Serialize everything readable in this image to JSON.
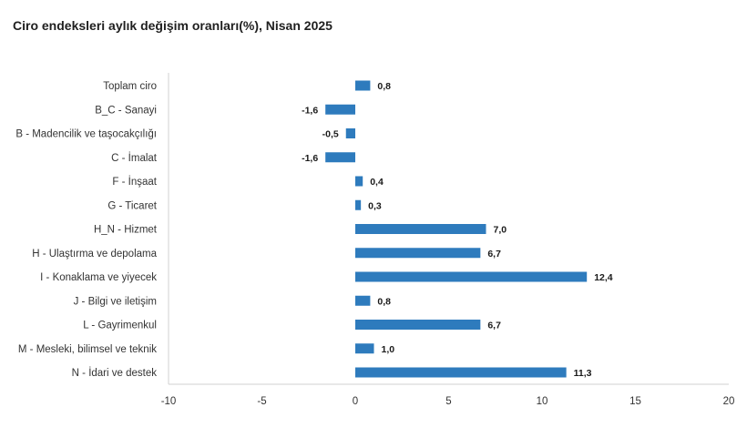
{
  "chart_data": {
    "type": "bar",
    "orientation": "horizontal",
    "title": "Ciro endeksleri aylık değişim oranları(%), Nisan 2025",
    "categories": [
      "Toplam ciro",
      "B_C - Sanayi",
      "B - Madencilik ve taşocakçılığı",
      "C - İmalat",
      "F - İnşaat",
      "G - Ticaret",
      "H_N - Hizmet",
      "H - Ulaştırma ve depolama",
      "I - Konaklama ve yiyecek",
      "J - Bilgi ve iletişim",
      "L - Gayrimenkul",
      "M - Mesleki, bilimsel ve teknik",
      "N - İdari ve destek"
    ],
    "values": [
      0.8,
      -1.6,
      -0.5,
      -1.6,
      0.4,
      0.3,
      7.0,
      6.7,
      12.4,
      0.8,
      6.7,
      1.0,
      11.3
    ],
    "data_labels": [
      "0,8",
      "-1,6",
      "-0,5",
      "-1,6",
      "0,4",
      "0,3",
      "7,0",
      "6,7",
      "12,4",
      "0,8",
      "6,7",
      "1,0",
      "11,3"
    ],
    "xlim": [
      -10,
      20
    ],
    "xticks": [
      -10,
      -5,
      0,
      5,
      10,
      15,
      20
    ],
    "xtick_labels": [
      "-10",
      "-5",
      "0",
      "5",
      "10",
      "15",
      "20"
    ],
    "bar_color": "#2e7bbd",
    "grid": false,
    "legend": "none"
  }
}
